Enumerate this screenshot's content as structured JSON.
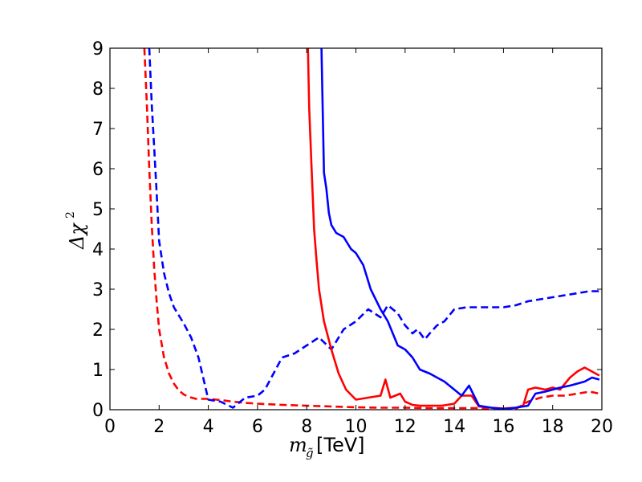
{
  "chart_data": {
    "type": "line",
    "xlabel_main": "m",
    "xlabel_sub": "g̃",
    "xlabel_unit": "[TeV]",
    "ylabel_main": "Δχ",
    "ylabel_sup": "2",
    "xlim": [
      0,
      20
    ],
    "ylim": [
      0,
      9
    ],
    "xticks": [
      "0",
      "2",
      "4",
      "6",
      "8",
      "10",
      "12",
      "14",
      "16",
      "18",
      "20"
    ],
    "yticks": [
      "0",
      "1",
      "2",
      "3",
      "4",
      "5",
      "6",
      "7",
      "8",
      "9"
    ],
    "grid": false,
    "series": [
      {
        "color": "#ff0000",
        "style": "dashed",
        "x": [
          1.4,
          1.5,
          1.6,
          1.7,
          1.8,
          1.9,
          2.0,
          2.2,
          2.4,
          2.6,
          2.8,
          3.0,
          3.2,
          3.5,
          4.0,
          4.5,
          5.0,
          5.5,
          6.0,
          7.0,
          8.0,
          9.0,
          10.0,
          11.0,
          12.0,
          13.0,
          14.0,
          15.0,
          15.5,
          16.0,
          16.5,
          17.0,
          17.5,
          18.0,
          18.5,
          19.0,
          19.5,
          19.9
        ],
        "y": [
          9.0,
          7.6,
          6.0,
          4.6,
          3.5,
          2.7,
          2.0,
          1.3,
          0.9,
          0.65,
          0.48,
          0.38,
          0.32,
          0.27,
          0.27,
          0.24,
          0.2,
          0.17,
          0.15,
          0.12,
          0.1,
          0.08,
          0.06,
          0.05,
          0.05,
          0.04,
          0.04,
          0.04,
          0.03,
          0.02,
          0.02,
          0.2,
          0.3,
          0.35,
          0.35,
          0.4,
          0.45,
          0.4
        ]
      },
      {
        "color": "#0000ff",
        "style": "dashed",
        "x": [
          1.6,
          1.7,
          1.8,
          1.9,
          2.0,
          2.2,
          2.4,
          2.6,
          2.8,
          3.0,
          3.3,
          3.6,
          4.0,
          4.5,
          5.0,
          5.5,
          6.0,
          6.3,
          7.0,
          7.5,
          8.0,
          8.5,
          9.0,
          9.5,
          10.0,
          10.5,
          11.0,
          11.3,
          11.7,
          12.0,
          12.3,
          12.5,
          12.8,
          13.0,
          13.3,
          13.6,
          14.0,
          14.5,
          15.0,
          15.5,
          16.0,
          16.5,
          17.0,
          17.5,
          18.0,
          18.5,
          19.0,
          19.5,
          20.0
        ],
        "y": [
          9.0,
          7.6,
          6.5,
          5.4,
          4.2,
          3.4,
          2.9,
          2.55,
          2.35,
          2.15,
          1.8,
          1.3,
          0.25,
          0.2,
          0.05,
          0.3,
          0.35,
          0.5,
          1.3,
          1.4,
          1.6,
          1.8,
          1.5,
          2.0,
          2.2,
          2.5,
          2.3,
          2.6,
          2.4,
          2.1,
          1.9,
          2.0,
          1.75,
          1.9,
          2.1,
          2.2,
          2.5,
          2.55,
          2.55,
          2.55,
          2.55,
          2.6,
          2.7,
          2.75,
          2.8,
          2.85,
          2.9,
          2.95,
          2.95
        ]
      },
      {
        "color": "#ff0000",
        "style": "solid",
        "x": [
          8.05,
          8.1,
          8.2,
          8.3,
          8.4,
          8.5,
          8.7,
          9.0,
          9.3,
          9.6,
          10.0,
          10.5,
          11.0,
          11.2,
          11.4,
          11.8,
          12.0,
          12.3,
          12.6,
          13.0,
          13.5,
          14.0,
          14.3,
          14.7,
          15.0,
          15.5,
          16.0,
          16.5,
          16.8,
          17.0,
          17.3,
          17.7,
          18.0,
          18.3,
          18.7,
          19.0,
          19.3,
          19.6,
          19.9
        ],
        "y": [
          9.0,
          7.5,
          6.0,
          4.5,
          3.7,
          3.0,
          2.2,
          1.5,
          0.9,
          0.5,
          0.25,
          0.3,
          0.35,
          0.75,
          0.3,
          0.4,
          0.2,
          0.12,
          0.1,
          0.1,
          0.1,
          0.15,
          0.35,
          0.35,
          0.08,
          0.05,
          0.03,
          0.05,
          0.1,
          0.5,
          0.55,
          0.5,
          0.55,
          0.5,
          0.8,
          0.95,
          1.05,
          0.95,
          0.85
        ]
      },
      {
        "color": "#0000ff",
        "style": "solid",
        "x": [
          8.6,
          8.7,
          8.8,
          8.9,
          9.0,
          9.2,
          9.5,
          9.8,
          10.0,
          10.3,
          10.6,
          11.0,
          11.3,
          11.7,
          12.0,
          12.3,
          12.6,
          13.0,
          13.3,
          13.6,
          14.0,
          14.3,
          14.6,
          15.0,
          15.5,
          16.0,
          16.5,
          17.0,
          17.3,
          17.7,
          18.0,
          18.3,
          18.7,
          19.0,
          19.3,
          19.6,
          19.9
        ],
        "y": [
          9.0,
          5.9,
          5.5,
          4.9,
          4.6,
          4.4,
          4.3,
          4.0,
          3.9,
          3.6,
          3.0,
          2.5,
          2.2,
          1.6,
          1.5,
          1.3,
          1.0,
          0.9,
          0.8,
          0.7,
          0.5,
          0.35,
          0.6,
          0.1,
          0.05,
          0.02,
          0.05,
          0.1,
          0.4,
          0.45,
          0.5,
          0.55,
          0.6,
          0.65,
          0.7,
          0.8,
          0.75
        ]
      }
    ]
  }
}
